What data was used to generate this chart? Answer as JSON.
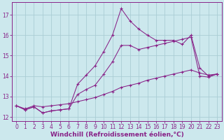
{
  "background_color": "#cce8ed",
  "grid_color": "#aacdd4",
  "line_color": "#882288",
  "xlabel": "Windchill (Refroidissement éolien,°C)",
  "xlabel_fontsize": 6.5,
  "tick_fontsize": 5.5,
  "yticks": [
    12,
    13,
    14,
    15,
    16,
    17
  ],
  "xticks": [
    0,
    1,
    2,
    3,
    4,
    5,
    6,
    7,
    8,
    9,
    10,
    11,
    12,
    13,
    14,
    15,
    16,
    17,
    18,
    19,
    20,
    21,
    22,
    23
  ],
  "xlim": [
    -0.5,
    23.5
  ],
  "ylim": [
    11.8,
    17.6
  ],
  "series1_x": [
    0,
    1,
    2,
    3,
    4,
    5,
    6,
    7,
    8,
    9,
    10,
    11,
    12,
    13,
    14,
    15,
    16,
    17,
    18,
    19,
    20,
    21,
    22,
    23
  ],
  "series1_y": [
    12.55,
    12.35,
    12.5,
    12.2,
    12.3,
    12.35,
    12.4,
    13.6,
    14.05,
    14.5,
    15.2,
    16.0,
    17.3,
    16.7,
    16.3,
    16.0,
    15.75,
    15.75,
    15.75,
    15.55,
    16.0,
    14.4,
    14.0,
    14.1
  ],
  "series2_x": [
    0,
    1,
    2,
    3,
    4,
    5,
    6,
    7,
    8,
    9,
    10,
    11,
    12,
    13,
    14,
    15,
    16,
    17,
    18,
    19,
    20,
    21,
    22,
    23
  ],
  "series2_y": [
    12.55,
    12.35,
    12.5,
    12.2,
    12.3,
    12.35,
    12.4,
    13.1,
    13.35,
    13.55,
    14.1,
    14.7,
    15.5,
    15.5,
    15.3,
    15.4,
    15.5,
    15.6,
    15.7,
    15.8,
    15.9,
    14.0,
    13.95,
    14.1
  ],
  "series3_x": [
    0,
    1,
    2,
    3,
    4,
    5,
    6,
    7,
    8,
    9,
    10,
    11,
    12,
    13,
    14,
    15,
    16,
    17,
    18,
    19,
    20,
    21,
    22,
    23
  ],
  "series3_y": [
    12.55,
    12.4,
    12.55,
    12.5,
    12.55,
    12.6,
    12.65,
    12.75,
    12.85,
    12.95,
    13.1,
    13.25,
    13.45,
    13.55,
    13.65,
    13.8,
    13.9,
    14.0,
    14.1,
    14.2,
    14.3,
    14.15,
    14.05,
    14.1
  ]
}
